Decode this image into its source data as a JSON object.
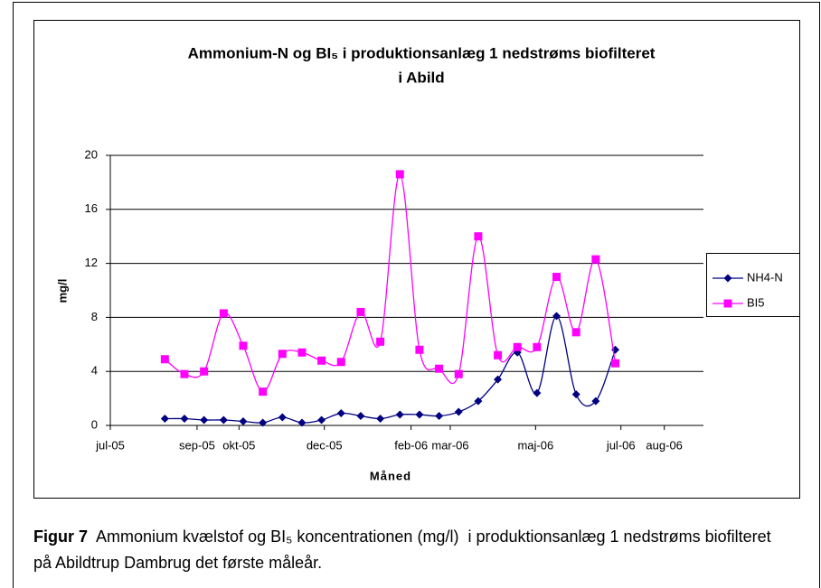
{
  "chart_data": {
    "type": "line",
    "title": [
      "Ammonium-N og BI₅ i produktionsanlæg 1 nedstrøms biofilteret",
      "i Abild"
    ],
    "xlabel": "Måned",
    "ylabel": "mg/l",
    "x": [
      38573,
      38587,
      38601,
      38615,
      38629,
      38643,
      38657,
      38671,
      38685,
      38699,
      38713,
      38727,
      38741,
      38755,
      38769,
      38783,
      38797,
      38811,
      38825,
      38839,
      38853,
      38867,
      38881,
      38895
    ],
    "series": [
      {
        "name": "NH4-N",
        "color": "#000080",
        "marker": "diamond",
        "values": [
          0.5,
          0.5,
          0.4,
          0.4,
          0.3,
          0.2,
          0.6,
          0.2,
          0.4,
          0.9,
          0.7,
          0.5,
          0.8,
          0.8,
          0.7,
          1.0,
          1.8,
          3.4,
          5.4,
          2.4,
          8.1,
          2.3,
          1.8,
          5.6
        ]
      },
      {
        "name": "BI5",
        "color": "#ff00ff",
        "marker": "square",
        "values": [
          4.9,
          3.8,
          4.0,
          8.3,
          5.9,
          2.5,
          5.3,
          5.4,
          4.8,
          4.7,
          8.4,
          6.2,
          18.6,
          5.6,
          4.2,
          3.8,
          14.0,
          5.2,
          5.8,
          5.8,
          11.0,
          6.9,
          12.3,
          4.6
        ]
      }
    ],
    "xlim": [
      38534,
      38958
    ],
    "xticks": [
      {
        "value": 38534,
        "label": "jul-05"
      },
      {
        "value": 38596,
        "label": "sep-05"
      },
      {
        "value": 38626,
        "label": "okt-05"
      },
      {
        "value": 38687,
        "label": "dec-05"
      },
      {
        "value": 38749,
        "label": "feb-06"
      },
      {
        "value": 38777,
        "label": "mar-06"
      },
      {
        "value": 38838,
        "label": "maj-06"
      },
      {
        "value": 38899,
        "label": "jul-06"
      },
      {
        "value": 38930,
        "label": "aug-06"
      }
    ],
    "ylim": [
      0,
      20
    ],
    "yticks": [
      0,
      4,
      8,
      12,
      16,
      20
    ],
    "grid": true,
    "smooth": true,
    "legend": "right"
  },
  "caption": {
    "label": "Figur 7",
    "text": "Ammonium kvælstof og BI₅ koncentrationen (mg/l)  i produktionsanlæg 1 nedstrøms biofilteret på Abildtrup Dambrug det første måleår."
  }
}
